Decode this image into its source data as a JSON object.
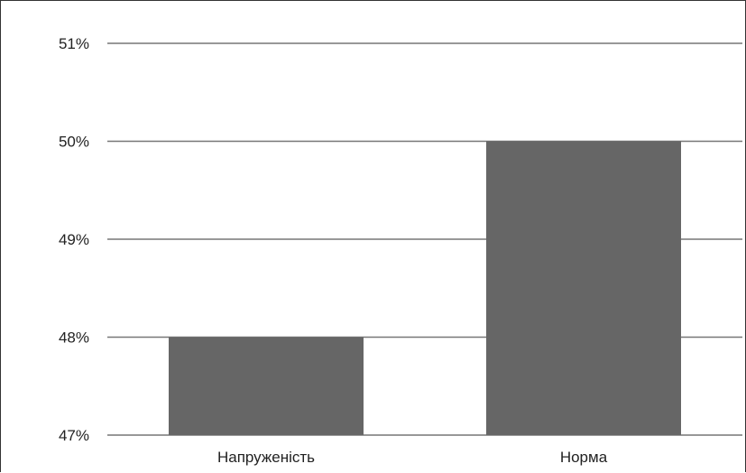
{
  "chart_data": {
    "type": "bar",
    "categories": [
      "Напруженість",
      "Норма"
    ],
    "values": [
      48,
      50
    ],
    "ylim": [
      47,
      51
    ],
    "yticks": [
      "47%",
      "48%",
      "49%",
      "50%",
      "51%"
    ],
    "grid": true,
    "bar_color": "#666666",
    "grid_color": "#777777"
  }
}
